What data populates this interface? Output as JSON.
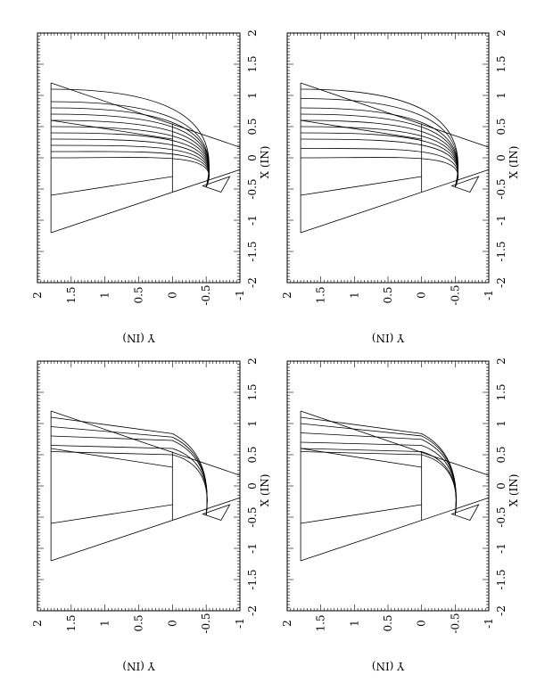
{
  "chart_data": [
    {
      "type": "line",
      "panel": "top-left",
      "xlabel": "X (IN)",
      "ylabel": "Y (IN)",
      "xlim": [
        -2,
        2
      ],
      "ylim": [
        -1,
        2
      ],
      "xticks": [
        "-2",
        "-1.5",
        "-1",
        "-0.5",
        "0",
        "0.5",
        "1",
        "1.5",
        "2"
      ],
      "yticks": [
        "-1",
        "-0.5",
        "0",
        "0.5",
        "1",
        "1.5",
        "2"
      ],
      "ray_mode": "curved",
      "ray_starts_x": [
        0,
        0.1,
        0.2,
        0.3,
        0.4,
        0.5,
        0.6,
        0.7,
        0.8,
        0.9,
        1.1
      ]
    },
    {
      "type": "line",
      "panel": "top-right",
      "xlabel": "X (IN)",
      "ylabel": "Y (IN)",
      "xlim": [
        -2,
        2
      ],
      "ylim": [
        -1,
        2
      ],
      "xticks": [
        "-2",
        "-1.5",
        "-1",
        "-0.5",
        "0",
        "0.5",
        "1",
        "1.5",
        "2"
      ],
      "yticks": [
        "-1",
        "-0.5",
        "0",
        "0.5",
        "1",
        "1.5",
        "2"
      ],
      "ray_mode": "curved",
      "ray_starts_x": [
        0,
        0.15,
        0.3,
        0.4,
        0.5,
        0.6,
        0.7,
        0.8,
        0.95,
        1.1
      ]
    },
    {
      "type": "line",
      "panel": "bottom-left",
      "xlabel": "X (IN)",
      "ylabel": "Y (IN)",
      "xlim": [
        -2,
        2
      ],
      "ylim": [
        -1,
        2
      ],
      "xticks": [
        "-2",
        "-1.5",
        "-1",
        "-0.5",
        "0",
        "0.5",
        "1",
        "1.5",
        "2"
      ],
      "yticks": [
        "-1",
        "-0.5",
        "0",
        "0.5",
        "1",
        "1.5",
        "2"
      ],
      "ray_mode": "straight",
      "ray_starts_x": [
        0.55,
        0.65,
        0.8,
        0.95,
        1.1
      ]
    },
    {
      "type": "line",
      "panel": "bottom-right",
      "xlabel": "X (IN)",
      "ylabel": "Y (IN)",
      "xlim": [
        -2,
        2
      ],
      "ylim": [
        -1,
        2
      ],
      "xticks": [
        "-2",
        "-1.5",
        "-1",
        "-0.5",
        "0",
        "0.5",
        "1",
        "1.5",
        "2"
      ],
      "yticks": [
        "-1",
        "-0.5",
        "0",
        "0.5",
        "1",
        "1.5",
        "2"
      ],
      "ray_mode": "straight",
      "ray_starts_x": [
        0.55,
        0.6,
        0.7,
        0.85,
        1.0,
        1.1
      ]
    }
  ]
}
